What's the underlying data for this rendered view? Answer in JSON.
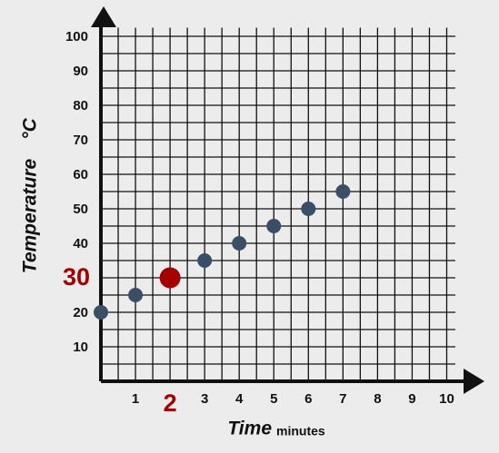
{
  "chart_data": {
    "type": "scatter",
    "x_label": "Time",
    "x_unit": "minutes",
    "y_label": "Temperature",
    "y_unit": "°C",
    "x": [
      0,
      1,
      2,
      3,
      4,
      5,
      6,
      7
    ],
    "values": [
      20,
      25,
      30,
      35,
      40,
      45,
      50,
      55
    ],
    "color": "#3a4e68",
    "highlight": {
      "index": 2,
      "color": "#a40000"
    },
    "xlim": [
      0,
      10.25
    ],
    "xticks": [
      1,
      2,
      3,
      4,
      5,
      6,
      7,
      8,
      9,
      10
    ],
    "ylim": [
      0,
      102.5
    ],
    "yticks": [
      10,
      20,
      30,
      40,
      50,
      60,
      70,
      80,
      90,
      100
    ],
    "grid": true,
    "background": "#ececec"
  }
}
